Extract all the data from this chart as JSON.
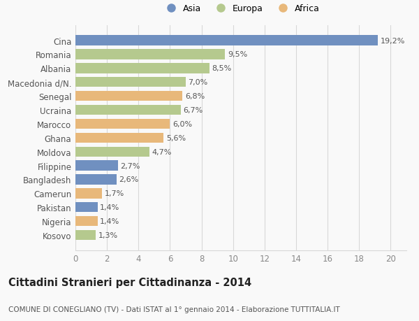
{
  "categories": [
    "Kosovo",
    "Nigeria",
    "Pakistan",
    "Camerun",
    "Bangladesh",
    "Filippine",
    "Moldova",
    "Ghana",
    "Marocco",
    "Ucraina",
    "Senegal",
    "Macedonia d/N.",
    "Albania",
    "Romania",
    "Cina"
  ],
  "values": [
    1.3,
    1.4,
    1.4,
    1.7,
    2.6,
    2.7,
    4.7,
    5.6,
    6.0,
    6.7,
    6.8,
    7.0,
    8.5,
    9.5,
    19.2
  ],
  "labels": [
    "1,3%",
    "1,4%",
    "1,4%",
    "1,7%",
    "2,6%",
    "2,7%",
    "4,7%",
    "5,6%",
    "6,0%",
    "6,7%",
    "6,8%",
    "7,0%",
    "8,5%",
    "9,5%",
    "19,2%"
  ],
  "continents": [
    "Europa",
    "Africa",
    "Asia",
    "Africa",
    "Asia",
    "Asia",
    "Europa",
    "Africa",
    "Africa",
    "Europa",
    "Africa",
    "Europa",
    "Europa",
    "Europa",
    "Asia"
  ],
  "colors": {
    "Asia": "#7090c0",
    "Europa": "#b5c98e",
    "Africa": "#e8b87a"
  },
  "legend": [
    "Asia",
    "Europa",
    "Africa"
  ],
  "legend_colors": [
    "#7090c0",
    "#b5c98e",
    "#e8b87a"
  ],
  "xlim": [
    0,
    21
  ],
  "xticks": [
    0,
    2,
    4,
    6,
    8,
    10,
    12,
    14,
    16,
    18,
    20
  ],
  "title": "Cittadini Stranieri per Cittadinanza - 2014",
  "subtitle": "COMUNE DI CONEGLIANO (TV) - Dati ISTAT al 1° gennaio 2014 - Elaborazione TUTTITALIA.IT",
  "background_color": "#f9f9f9",
  "grid_color": "#d8d8d8",
  "bar_height": 0.72,
  "label_fontsize": 8,
  "ytick_fontsize": 8.5,
  "xtick_fontsize": 8.5,
  "title_fontsize": 10.5,
  "subtitle_fontsize": 7.5
}
